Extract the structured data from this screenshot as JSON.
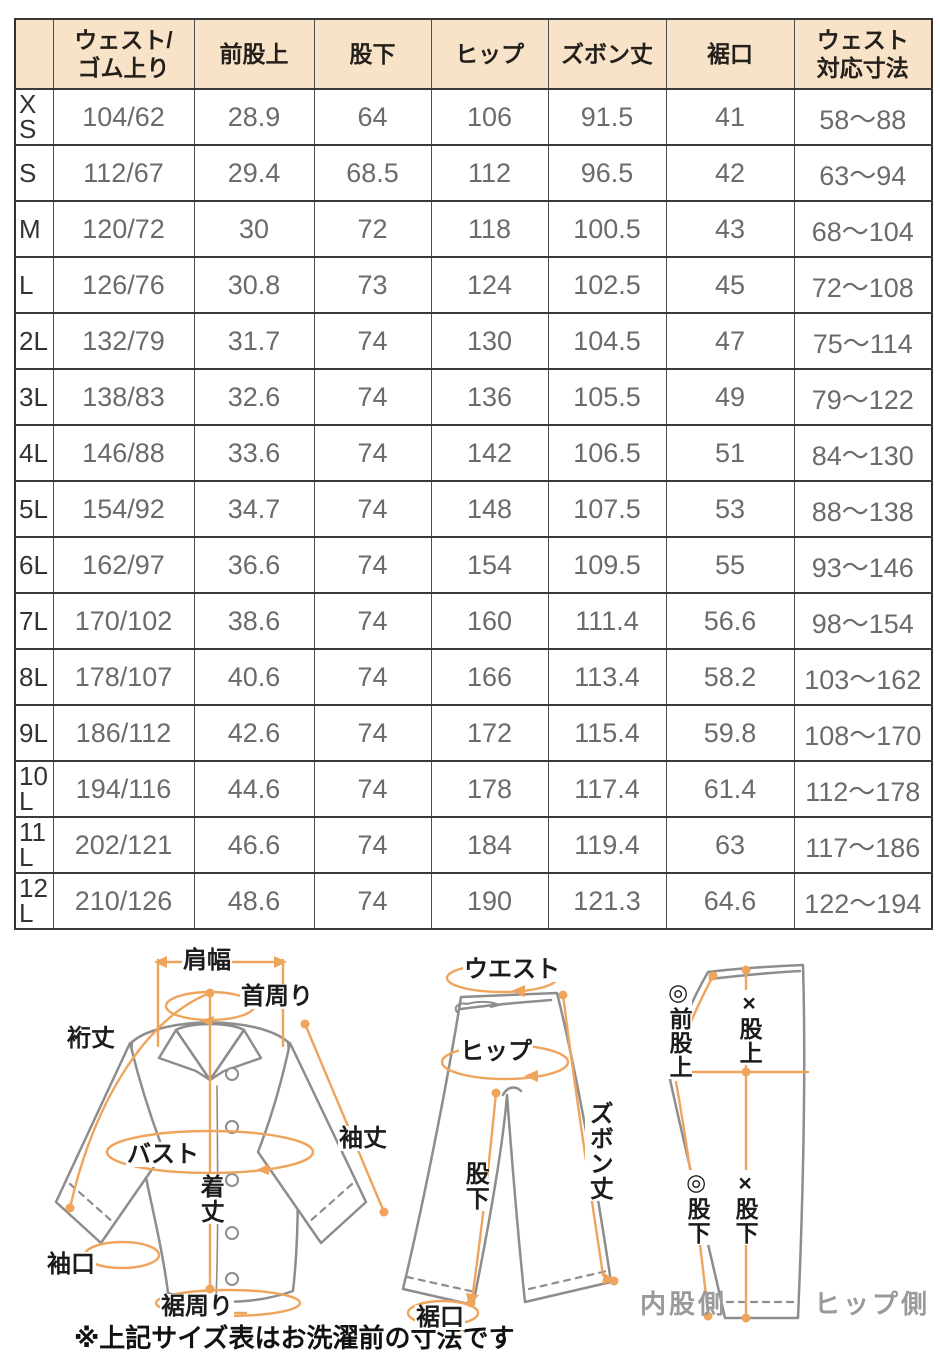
{
  "table": {
    "columns": [
      "",
      "ウェスト/\nゴム上り",
      "前股上",
      "股下",
      "ヒップ",
      "ズボン丈",
      "裾口",
      "ウェスト\n対応寸法"
    ],
    "rows": [
      {
        "size": "XS",
        "values": [
          "104/62",
          "28.9",
          "64",
          "106",
          "91.5",
          "41",
          "58〜88"
        ]
      },
      {
        "size": "S",
        "values": [
          "112/67",
          "29.4",
          "68.5",
          "112",
          "96.5",
          "42",
          "63〜94"
        ]
      },
      {
        "size": "M",
        "values": [
          "120/72",
          "30",
          "72",
          "118",
          "100.5",
          "43",
          "68〜104"
        ]
      },
      {
        "size": "L",
        "values": [
          "126/76",
          "30.8",
          "73",
          "124",
          "102.5",
          "45",
          "72〜108"
        ]
      },
      {
        "size": "2L",
        "values": [
          "132/79",
          "31.7",
          "74",
          "130",
          "104.5",
          "47",
          "75〜114"
        ]
      },
      {
        "size": "3L",
        "values": [
          "138/83",
          "32.6",
          "74",
          "136",
          "105.5",
          "49",
          "79〜122"
        ]
      },
      {
        "size": "4L",
        "values": [
          "146/88",
          "33.6",
          "74",
          "142",
          "106.5",
          "51",
          "84〜130"
        ]
      },
      {
        "size": "5L",
        "values": [
          "154/92",
          "34.7",
          "74",
          "148",
          "107.5",
          "53",
          "88〜138"
        ]
      },
      {
        "size": "6L",
        "values": [
          "162/97",
          "36.6",
          "74",
          "154",
          "109.5",
          "55",
          "93〜146"
        ]
      },
      {
        "size": "7L",
        "values": [
          "170/102",
          "38.6",
          "74",
          "160",
          "111.4",
          "56.6",
          "98〜154"
        ]
      },
      {
        "size": "8L",
        "values": [
          "178/107",
          "40.6",
          "74",
          "166",
          "113.4",
          "58.2",
          "103〜162"
        ]
      },
      {
        "size": "9L",
        "values": [
          "186/112",
          "42.6",
          "74",
          "172",
          "115.4",
          "59.8",
          "108〜170"
        ]
      },
      {
        "size": "10L",
        "values": [
          "194/116",
          "44.6",
          "74",
          "178",
          "117.4",
          "61.4",
          "112〜178"
        ]
      },
      {
        "size": "11L",
        "values": [
          "202/121",
          "46.6",
          "74",
          "184",
          "119.4",
          "63",
          "117〜186"
        ]
      },
      {
        "size": "12L",
        "values": [
          "210/126",
          "48.6",
          "74",
          "190",
          "121.3",
          "64.6",
          "122〜194"
        ]
      }
    ]
  },
  "diagrams": {
    "shirt": {
      "labels": {
        "shoulder_width": "肩幅",
        "neck": "首周り",
        "yuki": "裄丈",
        "bust": "バスト",
        "sleeve": "袖丈",
        "body_length": "着丈",
        "cuff": "袖口",
        "hem_round": "裾周り"
      }
    },
    "pants": {
      "labels": {
        "waist": "ウエスト",
        "hip": "ヒップ",
        "length": "ズボン丈",
        "inseam": "股下",
        "hem": "裾口"
      }
    },
    "pattern": {
      "labels": {
        "front_rise": "◎前股上",
        "rise": "×股上",
        "inseam_front": "◎股下",
        "inseam_back": "×股下",
        "inner_side": "内股側",
        "hip_side": "ヒップ側"
      }
    }
  },
  "note": "※上記サイズ表はお洗濯前の寸法です",
  "colors": {
    "header_bg": "#f8e3c8",
    "table_border": "#3a3a3a",
    "value_text": "#6b6b6b",
    "annotation_orange": "#efa45c",
    "garment_outline": "#8d8d8d",
    "side_label_gray": "#9a9a9a"
  }
}
